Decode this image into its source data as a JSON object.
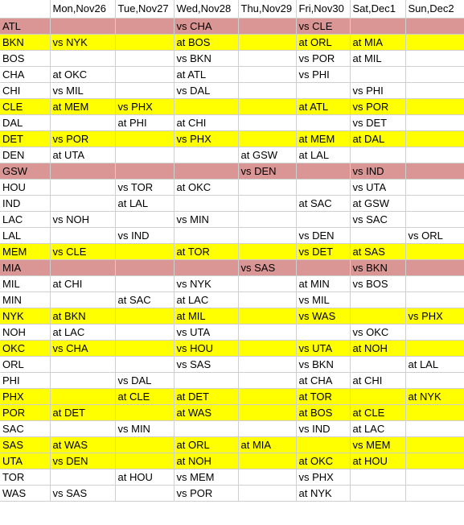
{
  "headers": [
    "",
    "Mon,Nov26",
    "Tue,Nov27",
    "Wed,Nov28",
    "Thu,Nov29",
    "Fri,Nov30",
    "Sat,Dec1",
    "Sun,Dec2"
  ],
  "colors": {
    "yellow": "#ffff00",
    "pink": "#da9694",
    "gridline": "#cfcfcf"
  },
  "rows": [
    {
      "team": "ATL",
      "highlight": "pink",
      "cells": [
        "",
        "",
        "vs CHA",
        "",
        "vs CLE",
        "",
        ""
      ]
    },
    {
      "team": "BKN",
      "highlight": "yellow",
      "cells": [
        "vs NYK",
        "",
        "at BOS",
        "",
        "at ORL",
        "at MIA",
        ""
      ]
    },
    {
      "team": "BOS",
      "highlight": "",
      "cells": [
        "",
        "",
        "vs BKN",
        "",
        "vs POR",
        "at MIL",
        ""
      ]
    },
    {
      "team": "CHA",
      "highlight": "",
      "cells": [
        "at OKC",
        "",
        "at ATL",
        "",
        "vs PHI",
        "",
        ""
      ]
    },
    {
      "team": "CHI",
      "highlight": "",
      "cells": [
        "vs MIL",
        "",
        "vs DAL",
        "",
        "",
        "vs PHI",
        ""
      ]
    },
    {
      "team": "CLE",
      "highlight": "yellow",
      "cells": [
        "at MEM",
        "vs PHX",
        "",
        "",
        "at ATL",
        "vs POR",
        ""
      ]
    },
    {
      "team": "DAL",
      "highlight": "",
      "cells": [
        "",
        "at PHI",
        "at CHI",
        "",
        "",
        "vs DET",
        ""
      ]
    },
    {
      "team": "DET",
      "highlight": "yellow",
      "cells": [
        "vs POR",
        "",
        "vs PHX",
        "",
        "at MEM",
        "at DAL",
        ""
      ]
    },
    {
      "team": "DEN",
      "highlight": "",
      "cells": [
        "at UTA",
        "",
        "",
        "at GSW",
        "at LAL",
        "",
        ""
      ]
    },
    {
      "team": "GSW",
      "highlight": "pink",
      "cells": [
        "",
        "",
        "",
        "vs DEN",
        "",
        "vs IND",
        ""
      ]
    },
    {
      "team": "HOU",
      "highlight": "",
      "cells": [
        "",
        "vs TOR",
        "at OKC",
        "",
        "",
        "vs UTA",
        ""
      ]
    },
    {
      "team": "IND",
      "highlight": "",
      "cells": [
        "",
        "at LAL",
        "",
        "",
        "at SAC",
        "at GSW",
        ""
      ]
    },
    {
      "team": "LAC",
      "highlight": "",
      "cells": [
        "vs NOH",
        "",
        "vs MIN",
        "",
        "",
        "vs SAC",
        ""
      ]
    },
    {
      "team": "LAL",
      "highlight": "",
      "cells": [
        "",
        "vs IND",
        "",
        "",
        "vs DEN",
        "",
        "vs ORL"
      ]
    },
    {
      "team": "MEM",
      "highlight": "yellow",
      "cells": [
        "vs CLE",
        "",
        "at TOR",
        "",
        "vs DET",
        "at SAS",
        ""
      ]
    },
    {
      "team": "MIA",
      "highlight": "pink",
      "cells": [
        "",
        "",
        "",
        "vs SAS",
        "",
        "vs BKN",
        ""
      ]
    },
    {
      "team": "MIL",
      "highlight": "",
      "cells": [
        "at CHI",
        "",
        "vs NYK",
        "",
        "at MIN",
        "vs BOS",
        ""
      ]
    },
    {
      "team": "MIN",
      "highlight": "",
      "cells": [
        "",
        "at SAC",
        "at LAC",
        "",
        "vs MIL",
        "",
        ""
      ]
    },
    {
      "team": "NYK",
      "highlight": "yellow",
      "cells": [
        "at BKN",
        "",
        "at MIL",
        "",
        "vs WAS",
        "",
        "vs PHX"
      ]
    },
    {
      "team": "NOH",
      "highlight": "",
      "cells": [
        "at LAC",
        "",
        "vs UTA",
        "",
        "",
        "vs OKC",
        ""
      ]
    },
    {
      "team": "OKC",
      "highlight": "yellow",
      "cells": [
        "vs CHA",
        "",
        "vs HOU",
        "",
        "vs UTA",
        "at NOH",
        ""
      ]
    },
    {
      "team": "ORL",
      "highlight": "",
      "cells": [
        "",
        "",
        "vs SAS",
        "",
        "vs BKN",
        "",
        "at LAL"
      ]
    },
    {
      "team": "PHI",
      "highlight": "",
      "cells": [
        "",
        "vs DAL",
        "",
        "",
        "at CHA",
        "at CHI",
        ""
      ]
    },
    {
      "team": "PHX",
      "highlight": "yellow",
      "cells": [
        "",
        "at CLE",
        "at DET",
        "",
        "at TOR",
        "",
        "at NYK"
      ]
    },
    {
      "team": "POR",
      "highlight": "yellow",
      "cells": [
        "at DET",
        "",
        "at WAS",
        "",
        "at BOS",
        "at CLE",
        ""
      ]
    },
    {
      "team": "SAC",
      "highlight": "",
      "cells": [
        "",
        "vs MIN",
        "",
        "",
        "vs IND",
        "at LAC",
        ""
      ]
    },
    {
      "team": "SAS",
      "highlight": "yellow",
      "cells": [
        "at WAS",
        "",
        "at ORL",
        "at MIA",
        "",
        "vs MEM",
        ""
      ]
    },
    {
      "team": "UTA",
      "highlight": "yellow",
      "cells": [
        "vs DEN",
        "",
        "at NOH",
        "",
        "at OKC",
        "at HOU",
        ""
      ]
    },
    {
      "team": "TOR",
      "highlight": "",
      "cells": [
        "",
        "at HOU",
        "vs MEM",
        "",
        "vs PHX",
        "",
        ""
      ]
    },
    {
      "team": "WAS",
      "highlight": "",
      "cells": [
        "vs SAS",
        "",
        "vs POR",
        "",
        "at NYK",
        "",
        ""
      ]
    }
  ]
}
